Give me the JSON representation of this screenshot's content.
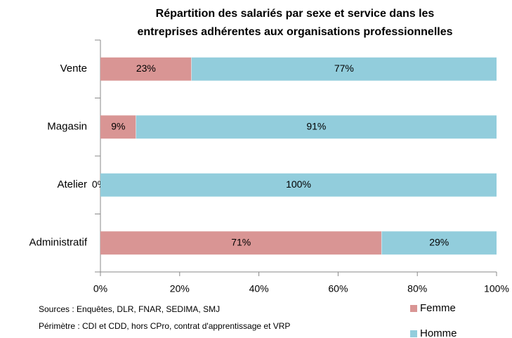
{
  "chart_data": {
    "type": "stacked-bar-horizontal",
    "title": [
      "Répartition des salariés par sexe et service  dans les",
      "entreprises adhérentes aux organisations professionnelles"
    ],
    "categories": [
      "Vente",
      "Magasin",
      "Atelier",
      "Administratif"
    ],
    "series": [
      {
        "name": "Femme",
        "color": "#d99594",
        "values": [
          23,
          9,
          0,
          71
        ],
        "value_labels": [
          "23%",
          "9%",
          "0%",
          "71%"
        ]
      },
      {
        "name": "Homme",
        "color": "#92cddc",
        "values": [
          77,
          91,
          100,
          29
        ],
        "value_labels": [
          "77%",
          "91%",
          "100%",
          "29%"
        ]
      }
    ],
    "xlim": [
      0,
      100
    ],
    "xticks": [
      {
        "value": 0,
        "label": "0%"
      },
      {
        "value": 20,
        "label": "20%"
      },
      {
        "value": 40,
        "label": "40%"
      },
      {
        "value": 60,
        "label": "60%"
      },
      {
        "value": 80,
        "label": "80%"
      },
      {
        "value": 100,
        "label": "100%"
      }
    ],
    "notes": [
      "Sources : Enquêtes, DLR, FNAR, SEDIMA, SMJ",
      "Périmètre : CDI et CDD, hors CPro, contrat d'apprentissage et VRP"
    ],
    "legend": "bottom-right"
  }
}
